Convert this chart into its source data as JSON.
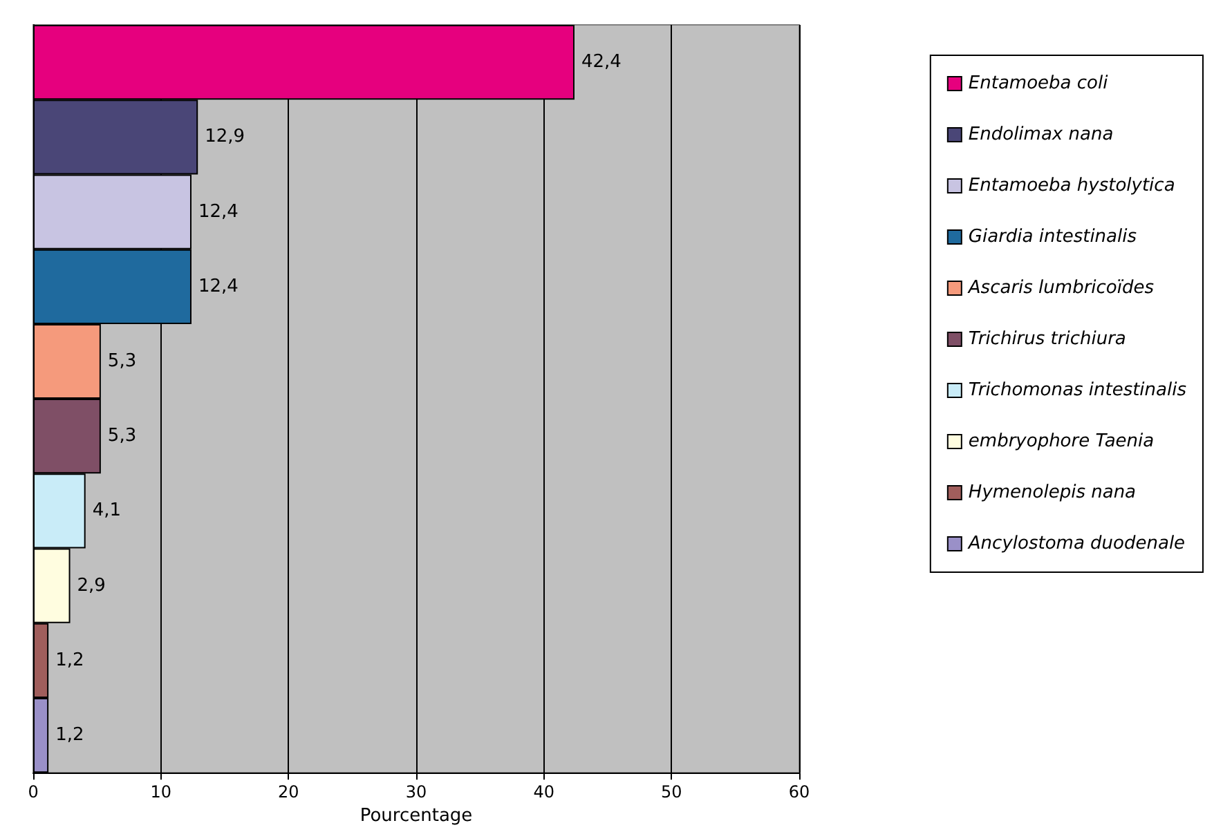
{
  "chart_data": {
    "type": "bar",
    "orientation": "horizontal",
    "xlabel": "Pourcentage",
    "categories": [
      null,
      null,
      null,
      null,
      null,
      null,
      null,
      null,
      null,
      null
    ],
    "series": [
      {
        "name": "Entamoeba coli",
        "color": "#e6007e",
        "values": [
          42.4,
          null,
          null,
          null,
          null,
          null,
          null,
          null,
          null,
          null
        ],
        "value_labels": [
          "42,4",
          null,
          null,
          null,
          null,
          null,
          null,
          null,
          null,
          null
        ]
      },
      {
        "name": "Endolimax nana",
        "color": "#4a4677",
        "values": [
          null,
          12.9,
          null,
          null,
          null,
          null,
          null,
          null,
          null,
          null
        ],
        "value_labels": [
          null,
          "12,9",
          null,
          null,
          null,
          null,
          null,
          null,
          null,
          null
        ]
      },
      {
        "name": "Entamoeba hystolytica",
        "color": "#c8c4e2",
        "values": [
          null,
          null,
          12.4,
          null,
          null,
          null,
          null,
          null,
          null,
          null
        ],
        "value_labels": [
          null,
          null,
          "12,4",
          null,
          null,
          null,
          null,
          null,
          null,
          null
        ]
      },
      {
        "name": "Giardia intestinalis",
        "color": "#1f6a9e",
        "values": [
          null,
          null,
          null,
          12.4,
          null,
          null,
          null,
          null,
          null,
          null
        ],
        "value_labels": [
          null,
          null,
          null,
          "12,4",
          null,
          null,
          null,
          null,
          null,
          null
        ]
      },
      {
        "name": "Ascaris lumbricoïdes",
        "color": "#f59a7c",
        "values": [
          null,
          null,
          null,
          null,
          5.3,
          null,
          null,
          null,
          null,
          null
        ],
        "value_labels": [
          null,
          null,
          null,
          null,
          "5,3",
          null,
          null,
          null,
          null,
          null
        ]
      },
      {
        "name": "Trichirus trichiura",
        "color": "#7f4f66",
        "values": [
          null,
          null,
          null,
          null,
          null,
          5.3,
          null,
          null,
          null,
          null
        ],
        "value_labels": [
          null,
          null,
          null,
          null,
          null,
          "5,3",
          null,
          null,
          null,
          null
        ]
      },
      {
        "name": "Trichomonas intestinalis",
        "color": "#c9ecf8",
        "values": [
          null,
          null,
          null,
          null,
          null,
          null,
          4.1,
          null,
          null,
          null
        ],
        "value_labels": [
          null,
          null,
          null,
          null,
          null,
          null,
          "4,1",
          null,
          null,
          null
        ]
      },
      {
        "name": "embryophore Taenia",
        "color": "#fffde0",
        "values": [
          null,
          null,
          null,
          null,
          null,
          null,
          null,
          2.9,
          null,
          null
        ],
        "value_labels": [
          null,
          null,
          null,
          null,
          null,
          null,
          null,
          "2,9",
          null,
          null
        ]
      },
      {
        "name": "Hymenolepis nana",
        "color": "#a05e5c",
        "values": [
          null,
          null,
          null,
          null,
          null,
          null,
          null,
          null,
          1.2,
          null
        ],
        "value_labels": [
          null,
          null,
          null,
          null,
          null,
          null,
          null,
          null,
          "1,2",
          null
        ]
      },
      {
        "name": "Ancylostoma duodenale",
        "color": "#9a90c8",
        "values": [
          null,
          null,
          null,
          null,
          null,
          null,
          null,
          null,
          null,
          1.2
        ],
        "value_labels": [
          null,
          null,
          null,
          null,
          null,
          null,
          null,
          null,
          null,
          "1,2"
        ]
      }
    ],
    "xlim": [
      0,
      60
    ],
    "xticks": [
      0,
      10,
      20,
      30,
      40,
      50,
      60
    ],
    "grid": "x",
    "legend": "right"
  }
}
